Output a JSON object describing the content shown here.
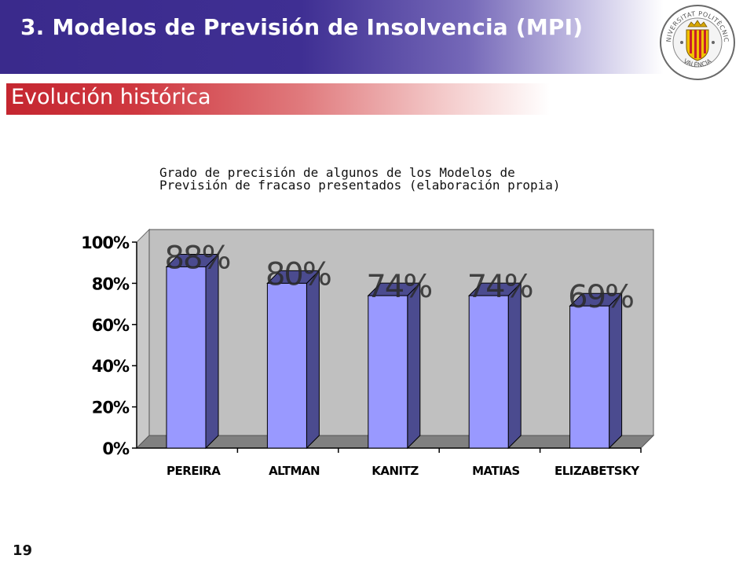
{
  "slide": {
    "title": "3. Modelos de Previsión de Insolvencia (MPI)",
    "section": "Evolución histórica",
    "caption_line1": "Grado de precisión de algunos de los Modelos de",
    "caption_line2": "Previsión de fracaso presentados (elaboración propia)",
    "page_number": "19"
  },
  "logo": {
    "text_top": "UNIVERSITAT POLITÈCNICA",
    "text_bottom": "VALÈNCIA"
  },
  "colors": {
    "title_banner": "#3a2a8c",
    "section_band": "#c4252f",
    "bar_front": "#9999ff",
    "bar_side": "#4b4b8f",
    "plot_wall": "#c0c0c0",
    "plot_floor": "#808080"
  },
  "chart_data": {
    "type": "bar",
    "categories": [
      "PEREIRA",
      "ALTMAN",
      "KANITZ",
      "MATIAS",
      "ELIZABETSKY"
    ],
    "values": [
      88,
      80,
      74,
      74,
      69
    ],
    "data_labels": [
      "88%",
      "80%",
      "74%",
      "74%",
      "69%"
    ],
    "y_ticks": [
      "0%",
      "20%",
      "40%",
      "60%",
      "80%",
      "100%"
    ],
    "ylim": [
      0,
      100
    ],
    "grid": false,
    "style": "3d"
  }
}
